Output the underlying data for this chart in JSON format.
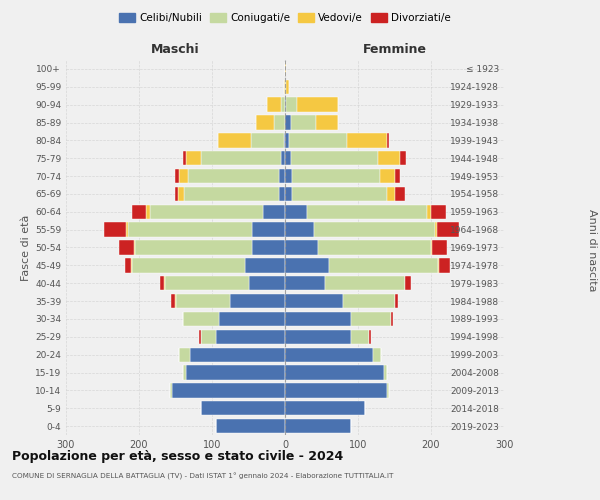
{
  "age_groups": [
    "0-4",
    "5-9",
    "10-14",
    "15-19",
    "20-24",
    "25-29",
    "30-34",
    "35-39",
    "40-44",
    "45-49",
    "50-54",
    "55-59",
    "60-64",
    "65-69",
    "70-74",
    "75-79",
    "80-84",
    "85-89",
    "90-94",
    "95-99",
    "100+"
  ],
  "birth_years": [
    "2019-2023",
    "2014-2018",
    "2009-2013",
    "2004-2008",
    "1999-2003",
    "1994-1998",
    "1989-1993",
    "1984-1988",
    "1979-1983",
    "1974-1978",
    "1969-1973",
    "1964-1968",
    "1959-1963",
    "1954-1958",
    "1949-1953",
    "1944-1948",
    "1939-1943",
    "1934-1938",
    "1929-1933",
    "1924-1928",
    "≤ 1923"
  ],
  "colors": {
    "celibi": "#4a72b0",
    "coniugati": "#c5d9a0",
    "vedovi": "#f5c842",
    "divorziati": "#cc2222"
  },
  "maschi": {
    "celibi": [
      95,
      115,
      155,
      135,
      130,
      95,
      90,
      75,
      50,
      55,
      45,
      45,
      30,
      8,
      8,
      5,
      2,
      0,
      0,
      0,
      0
    ],
    "coniugati": [
      0,
      0,
      2,
      5,
      15,
      20,
      50,
      75,
      115,
      155,
      160,
      170,
      155,
      130,
      125,
      110,
      45,
      15,
      5,
      0,
      0
    ],
    "vedovi": [
      0,
      0,
      0,
      0,
      0,
      0,
      0,
      1,
      1,
      1,
      2,
      3,
      5,
      8,
      12,
      20,
      45,
      25,
      20,
      1,
      0
    ],
    "divorziati": [
      0,
      0,
      0,
      0,
      0,
      3,
      0,
      5,
      5,
      8,
      20,
      30,
      20,
      5,
      5,
      5,
      0,
      0,
      0,
      0,
      0
    ]
  },
  "femmine": {
    "celibi": [
      90,
      110,
      140,
      135,
      120,
      90,
      90,
      80,
      55,
      60,
      45,
      40,
      30,
      10,
      10,
      8,
      5,
      8,
      2,
      0,
      0
    ],
    "coniugati": [
      0,
      0,
      2,
      5,
      12,
      25,
      55,
      70,
      110,
      150,
      155,
      165,
      165,
      130,
      120,
      120,
      80,
      35,
      15,
      2,
      0
    ],
    "vedovi": [
      0,
      0,
      0,
      0,
      0,
      0,
      0,
      0,
      0,
      1,
      2,
      3,
      5,
      10,
      20,
      30,
      55,
      30,
      55,
      3,
      2
    ],
    "divorziati": [
      0,
      0,
      0,
      0,
      0,
      3,
      3,
      5,
      8,
      15,
      20,
      30,
      20,
      15,
      8,
      8,
      3,
      0,
      0,
      0,
      0
    ]
  },
  "title": "Popolazione per età, sesso e stato civile - 2024",
  "subtitle": "COMUNE DI SERNAGLIA DELLA BATTAGLIA (TV) - Dati ISTAT 1° gennaio 2024 - Elaborazione TUTTITALIA.IT",
  "ylabel_left": "Fasce di età",
  "ylabel_right": "Anni di nascita",
  "xlabel_maschi": "Maschi",
  "xlabel_femmine": "Femmine",
  "xlim": 300,
  "legend_labels": [
    "Celibi/Nubili",
    "Coniugati/e",
    "Vedovi/e",
    "Divorziati/e"
  ],
  "background_color": "#f0f0f0"
}
